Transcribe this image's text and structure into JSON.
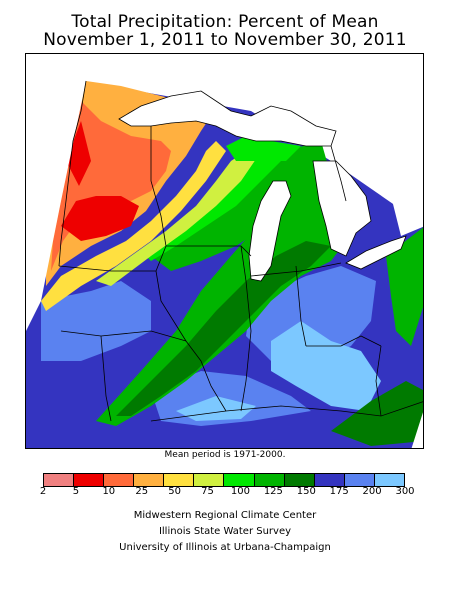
{
  "title_line1": "Total Precipitation: Percent of Mean",
  "title_line2": "November 1, 2011 to November 30, 2011",
  "mean_period": "Mean period is 1971-2000.",
  "legend": {
    "ticks": [
      "2",
      "5",
      "10",
      "25",
      "50",
      "75",
      "100",
      "125",
      "150",
      "175",
      "200",
      "300"
    ],
    "colors": [
      "#f08080",
      "#ee0000",
      "#ff6a3a",
      "#ffb040",
      "#ffe040",
      "#d0f040",
      "#00e800",
      "#00b400",
      "#007a00",
      "#3434c0",
      "#5a82f0",
      "#7cc8ff"
    ]
  },
  "credits": {
    "line1": "Midwestern Regional Climate Center",
    "line2": "Illinois State Water Survey",
    "line3": "University of Illinois at Urbana-Champaign"
  }
}
